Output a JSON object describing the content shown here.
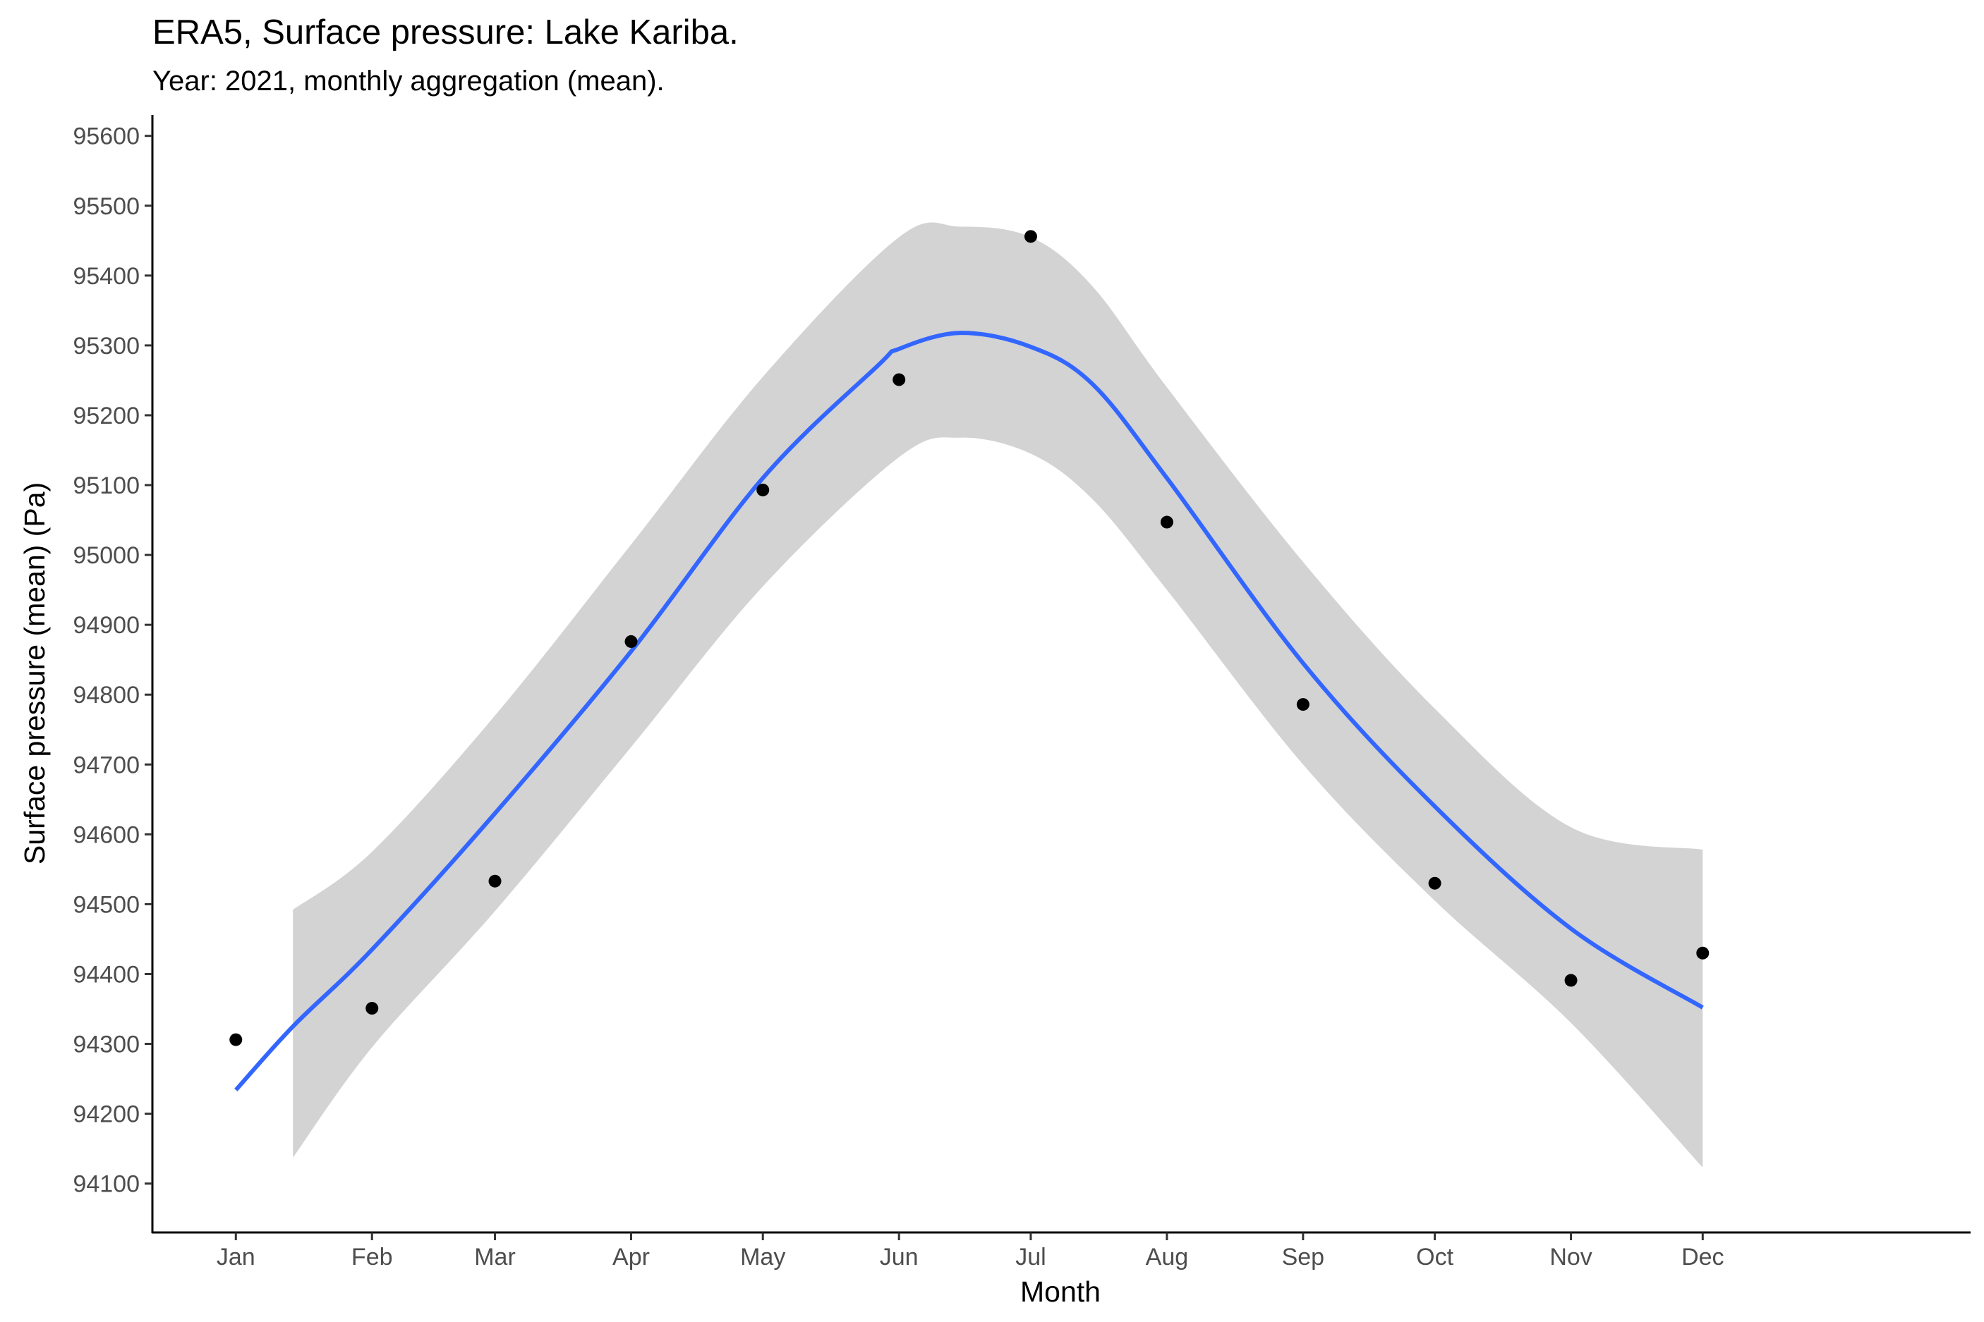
{
  "chart_data": {
    "type": "scatter",
    "title": "ERA5, Surface pressure: Lake Kariba.",
    "subtitle": "Year: 2021, monthly aggregation (mean).",
    "xlabel": "Month",
    "ylabel": "Surface pressure (mean) (Pa)",
    "categories": [
      "Jan",
      "Feb",
      "Mar",
      "Apr",
      "May",
      "Jun",
      "Jul",
      "Aug",
      "Sep",
      "Oct",
      "Nov",
      "Dec"
    ],
    "x": [
      "2021-01-01",
      "2021-02-01",
      "2021-03-01",
      "2021-04-01",
      "2021-05-01",
      "2021-06-01",
      "2021-07-01",
      "2021-08-01",
      "2021-09-01",
      "2021-10-01",
      "2021-11-01",
      "2021-12-01"
    ],
    "yticks": [
      94100,
      94200,
      94300,
      94400,
      94500,
      94600,
      94700,
      94800,
      94900,
      95000,
      95100,
      95200,
      95300,
      95400,
      95500,
      95600
    ],
    "ylim": [
      94030,
      95630
    ],
    "xlim": [
      "2020-12-13",
      "2022-01-31"
    ],
    "grid": false,
    "legend": "none",
    "series": [
      {
        "type": "points",
        "color": "#000000",
        "values": [
          94306,
          94351,
          94533,
          94876,
          95093,
          95251,
          95456,
          95047,
          94786,
          94530,
          94391,
          94430
        ]
      },
      {
        "type": "smooth-line",
        "color": "#3366ff",
        "x": [
          "2021-01-01",
          "2021-01-14",
          "2021-02-01",
          "2021-03-01",
          "2021-04-01",
          "2021-05-01",
          "2021-05-27",
          "2021-06-01",
          "2021-06-15",
          "2021-07-01",
          "2021-07-15",
          "2021-08-01",
          "2021-09-01",
          "2021-10-01",
          "2021-11-01",
          "2021-12-01"
        ],
        "values": [
          94234,
          94325,
          94435,
          94630,
          94862,
          95110,
          95270,
          95295,
          95318,
          95298,
          95245,
          95110,
          94845,
          94640,
          94465,
          94352
        ]
      },
      {
        "type": "confidence-band",
        "color": "#d3d3d3",
        "x": [
          "2021-01-14",
          "2021-02-01",
          "2021-03-01",
          "2021-04-01",
          "2021-05-01",
          "2021-06-01",
          "2021-06-15",
          "2021-07-01",
          "2021-07-15",
          "2021-08-01",
          "2021-09-01",
          "2021-10-01",
          "2021-11-01",
          "2021-12-01"
        ],
        "upper": [
          94492,
          94575,
          94770,
          95015,
          95255,
          95455,
          95470,
          95455,
          95385,
          95240,
          94990,
          94780,
          94610,
          94578
        ],
        "lower": [
          94137,
          94295,
          94490,
          94725,
          94955,
          95140,
          95168,
          95145,
          95080,
          94950,
          94700,
          94505,
          94330,
          94123
        ]
      }
    ]
  }
}
